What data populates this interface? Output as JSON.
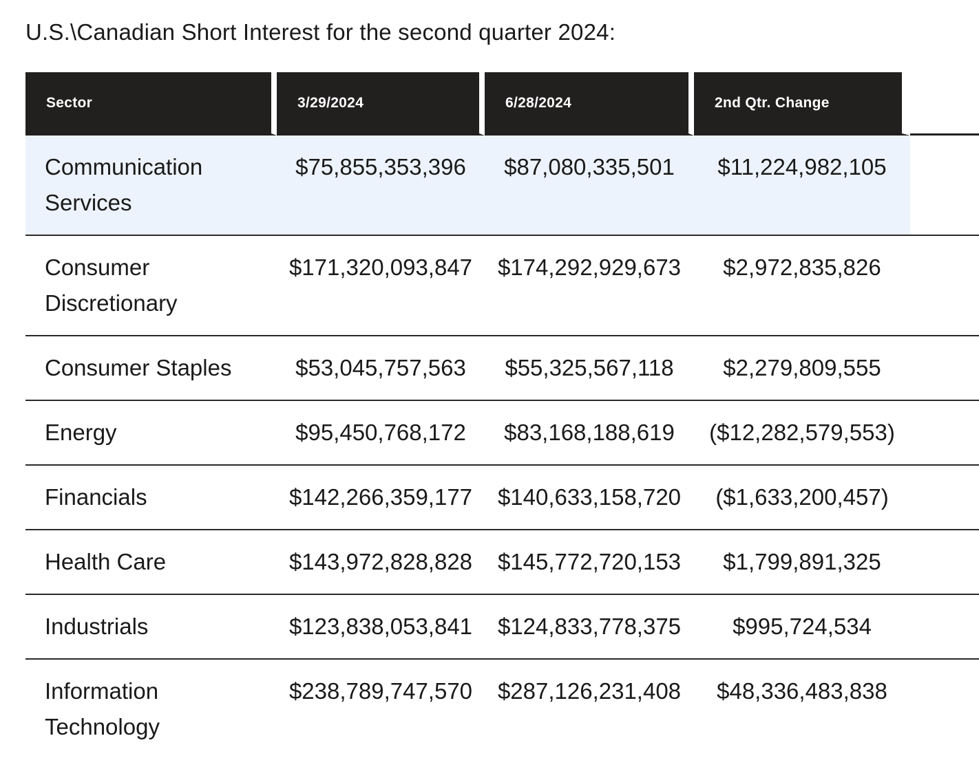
{
  "page_title": "U.S.\\Canadian Short Interest for the second quarter 2024:",
  "colors": {
    "header-bg": "#221f1f",
    "header-text": "#ffffff",
    "body-text": "#1a1a1a",
    "highlight-bg": "#edf3fc",
    "separator": "#2b2929",
    "page-bg": "#ffffff"
  },
  "table": {
    "headers": {
      "sector": "Sector",
      "date1": "3/29/2024",
      "date2": "6/28/2024",
      "change": "2nd Qtr. Change"
    },
    "rows": [
      {
        "sector": "Communication Services",
        "v1": "$75,855,353,396",
        "v2": "$87,080,335,501",
        "change": "$11,224,982,105",
        "highlighted": true
      },
      {
        "sector": "Consumer Discretionary",
        "v1": "$171,320,093,847",
        "v2": "$174,292,929,673",
        "change": "$2,972,835,826",
        "highlighted": false
      },
      {
        "sector": "Consumer Staples",
        "v1": "$53,045,757,563",
        "v2": "$55,325,567,118",
        "change": "$2,279,809,555",
        "highlighted": false
      },
      {
        "sector": "Energy",
        "v1": "$95,450,768,172",
        "v2": "$83,168,188,619",
        "change": "($12,282,579,553)",
        "highlighted": false
      },
      {
        "sector": "Financials",
        "v1": "$142,266,359,177",
        "v2": "$140,633,158,720",
        "change": "($1,633,200,457)",
        "highlighted": false
      },
      {
        "sector": "Health Care",
        "v1": "$143,972,828,828",
        "v2": "$145,772,720,153",
        "change": "$1,799,891,325",
        "highlighted": false
      },
      {
        "sector": "Industrials",
        "v1": "$123,838,053,841",
        "v2": "$124,833,778,375",
        "change": "$995,724,534",
        "highlighted": false
      },
      {
        "sector": "Information Technology",
        "v1": "$238,789,747,570",
        "v2": "$287,126,231,408",
        "change": "$48,336,483,838",
        "highlighted": false
      }
    ]
  },
  "chart_data": {
    "type": "table",
    "title": "U.S.\\Canadian Short Interest for the second quarter 2024",
    "columns": [
      "Sector",
      "3/29/2024",
      "6/28/2024",
      "2nd Qtr. Change"
    ],
    "rows": [
      [
        "Communication Services",
        75855353396,
        87080335501,
        11224982105
      ],
      [
        "Consumer Discretionary",
        171320093847,
        174292929673,
        2972835826
      ],
      [
        "Consumer Staples",
        53045757563,
        55325567118,
        2279809555
      ],
      [
        "Energy",
        95450768172,
        83168188619,
        -12282579553
      ],
      [
        "Financials",
        142266359177,
        140633158720,
        -1633200457
      ],
      [
        "Health Care",
        143972828828,
        145772720153,
        1799891325
      ],
      [
        "Industrials",
        123838053841,
        124833778375,
        995724534
      ],
      [
        "Information Technology",
        238789747570,
        287126231408,
        48336483838
      ]
    ]
  }
}
